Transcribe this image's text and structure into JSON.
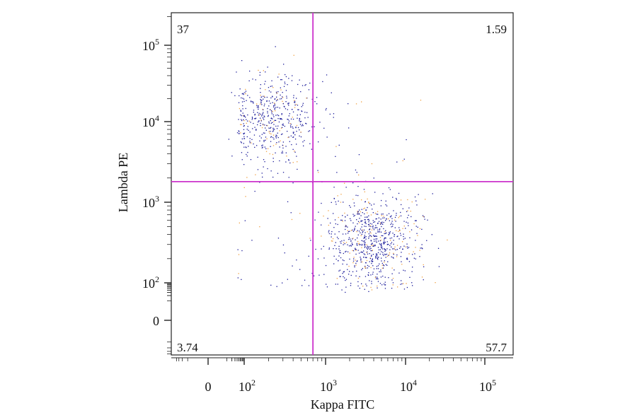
{
  "chart_data": {
    "type": "scatter",
    "title": "",
    "xlabel": "Kappa FITC",
    "ylabel": "Lambda PE",
    "x_scale": "biexponential",
    "y_scale": "biexponential",
    "x_tick_labels": [
      {
        "value": 0,
        "base": "0",
        "exp": ""
      },
      {
        "value": 100,
        "base": "10",
        "exp": "2"
      },
      {
        "value": 1000,
        "base": "10",
        "exp": "3"
      },
      {
        "value": 10000,
        "base": "10",
        "exp": "4"
      },
      {
        "value": 100000,
        "base": "10",
        "exp": "5"
      }
    ],
    "y_tick_labels": [
      {
        "value": 0,
        "base": "0",
        "exp": ""
      },
      {
        "value": 100,
        "base": "10",
        "exp": "2"
      },
      {
        "value": 1000,
        "base": "10",
        "exp": "3"
      },
      {
        "value": 10000,
        "base": "10",
        "exp": "4"
      },
      {
        "value": 100000,
        "base": "10",
        "exp": "5"
      }
    ],
    "gate": {
      "x": 700,
      "y": 1800,
      "color": "#cc33cc"
    },
    "quadrant_percentages": {
      "upper_left": "37",
      "upper_right": "1.59",
      "lower_left": "3.74",
      "lower_right": "57.7"
    },
    "populations": [
      {
        "x_center": 200,
        "y_center": 11000,
        "x_spread_decades": 0.3,
        "y_spread_decades": 0.3,
        "count": 520
      },
      {
        "x_center": 3800,
        "y_center": 330,
        "x_spread_decades": 0.3,
        "y_spread_decades": 0.3,
        "count": 780
      }
    ],
    "point_colors": {
      "primary": "#1a1a99",
      "secondary": "#f0a040"
    },
    "grid": false,
    "legend": "none"
  }
}
